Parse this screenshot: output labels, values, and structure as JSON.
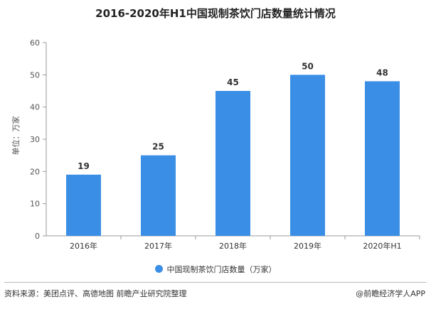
{
  "colors": {
    "bar": "#3a8ee6",
    "axis": "#999999",
    "text": "#333333"
  },
  "source": "资料来源：美团点评、高德地图 前瞻产业研究院整理",
  "brand": "@前瞻经济学人APP",
  "chart_data": {
    "type": "bar",
    "title": "2016-2020年H1中国现制茶饮门店数量统计情况",
    "ylabel": "单位：万家",
    "xlabel": "",
    "categories": [
      "2016年",
      "2017年",
      "2018年",
      "2019年",
      "2020年H1"
    ],
    "series": [
      {
        "name": "中国现制茶饮门店数量（万家）",
        "values": [
          19,
          25,
          45,
          50,
          48
        ]
      }
    ],
    "ylim": [
      0,
      60
    ],
    "yticks": [
      0,
      10,
      20,
      30,
      40,
      50,
      60
    ],
    "grid": false,
    "legend": "bottom",
    "data_labels": true
  }
}
